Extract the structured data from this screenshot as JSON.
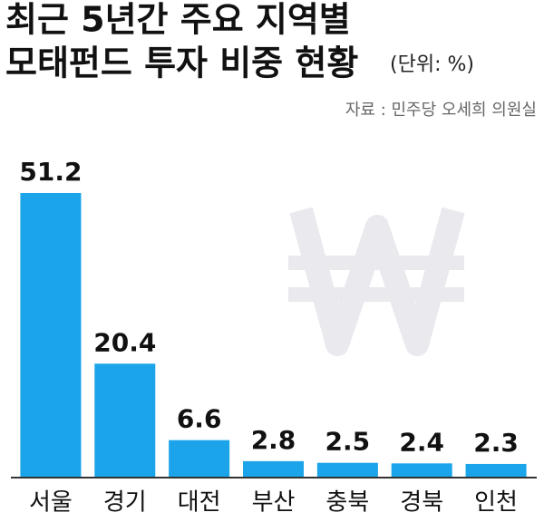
{
  "chart_data": {
    "type": "bar",
    "title": [
      "최근 5년간 주요 지역별",
      "모태펀드 투자 비중 현황"
    ],
    "unit": "(단위: %)",
    "source": "자료 : 민주당 오세희 의원실",
    "categories": [
      "서울",
      "경기",
      "대전",
      "부산",
      "충북",
      "경북",
      "인천"
    ],
    "values": [
      51.2,
      20.4,
      6.6,
      2.8,
      2.5,
      2.4,
      2.3
    ],
    "color": "#1ba4ea"
  }
}
